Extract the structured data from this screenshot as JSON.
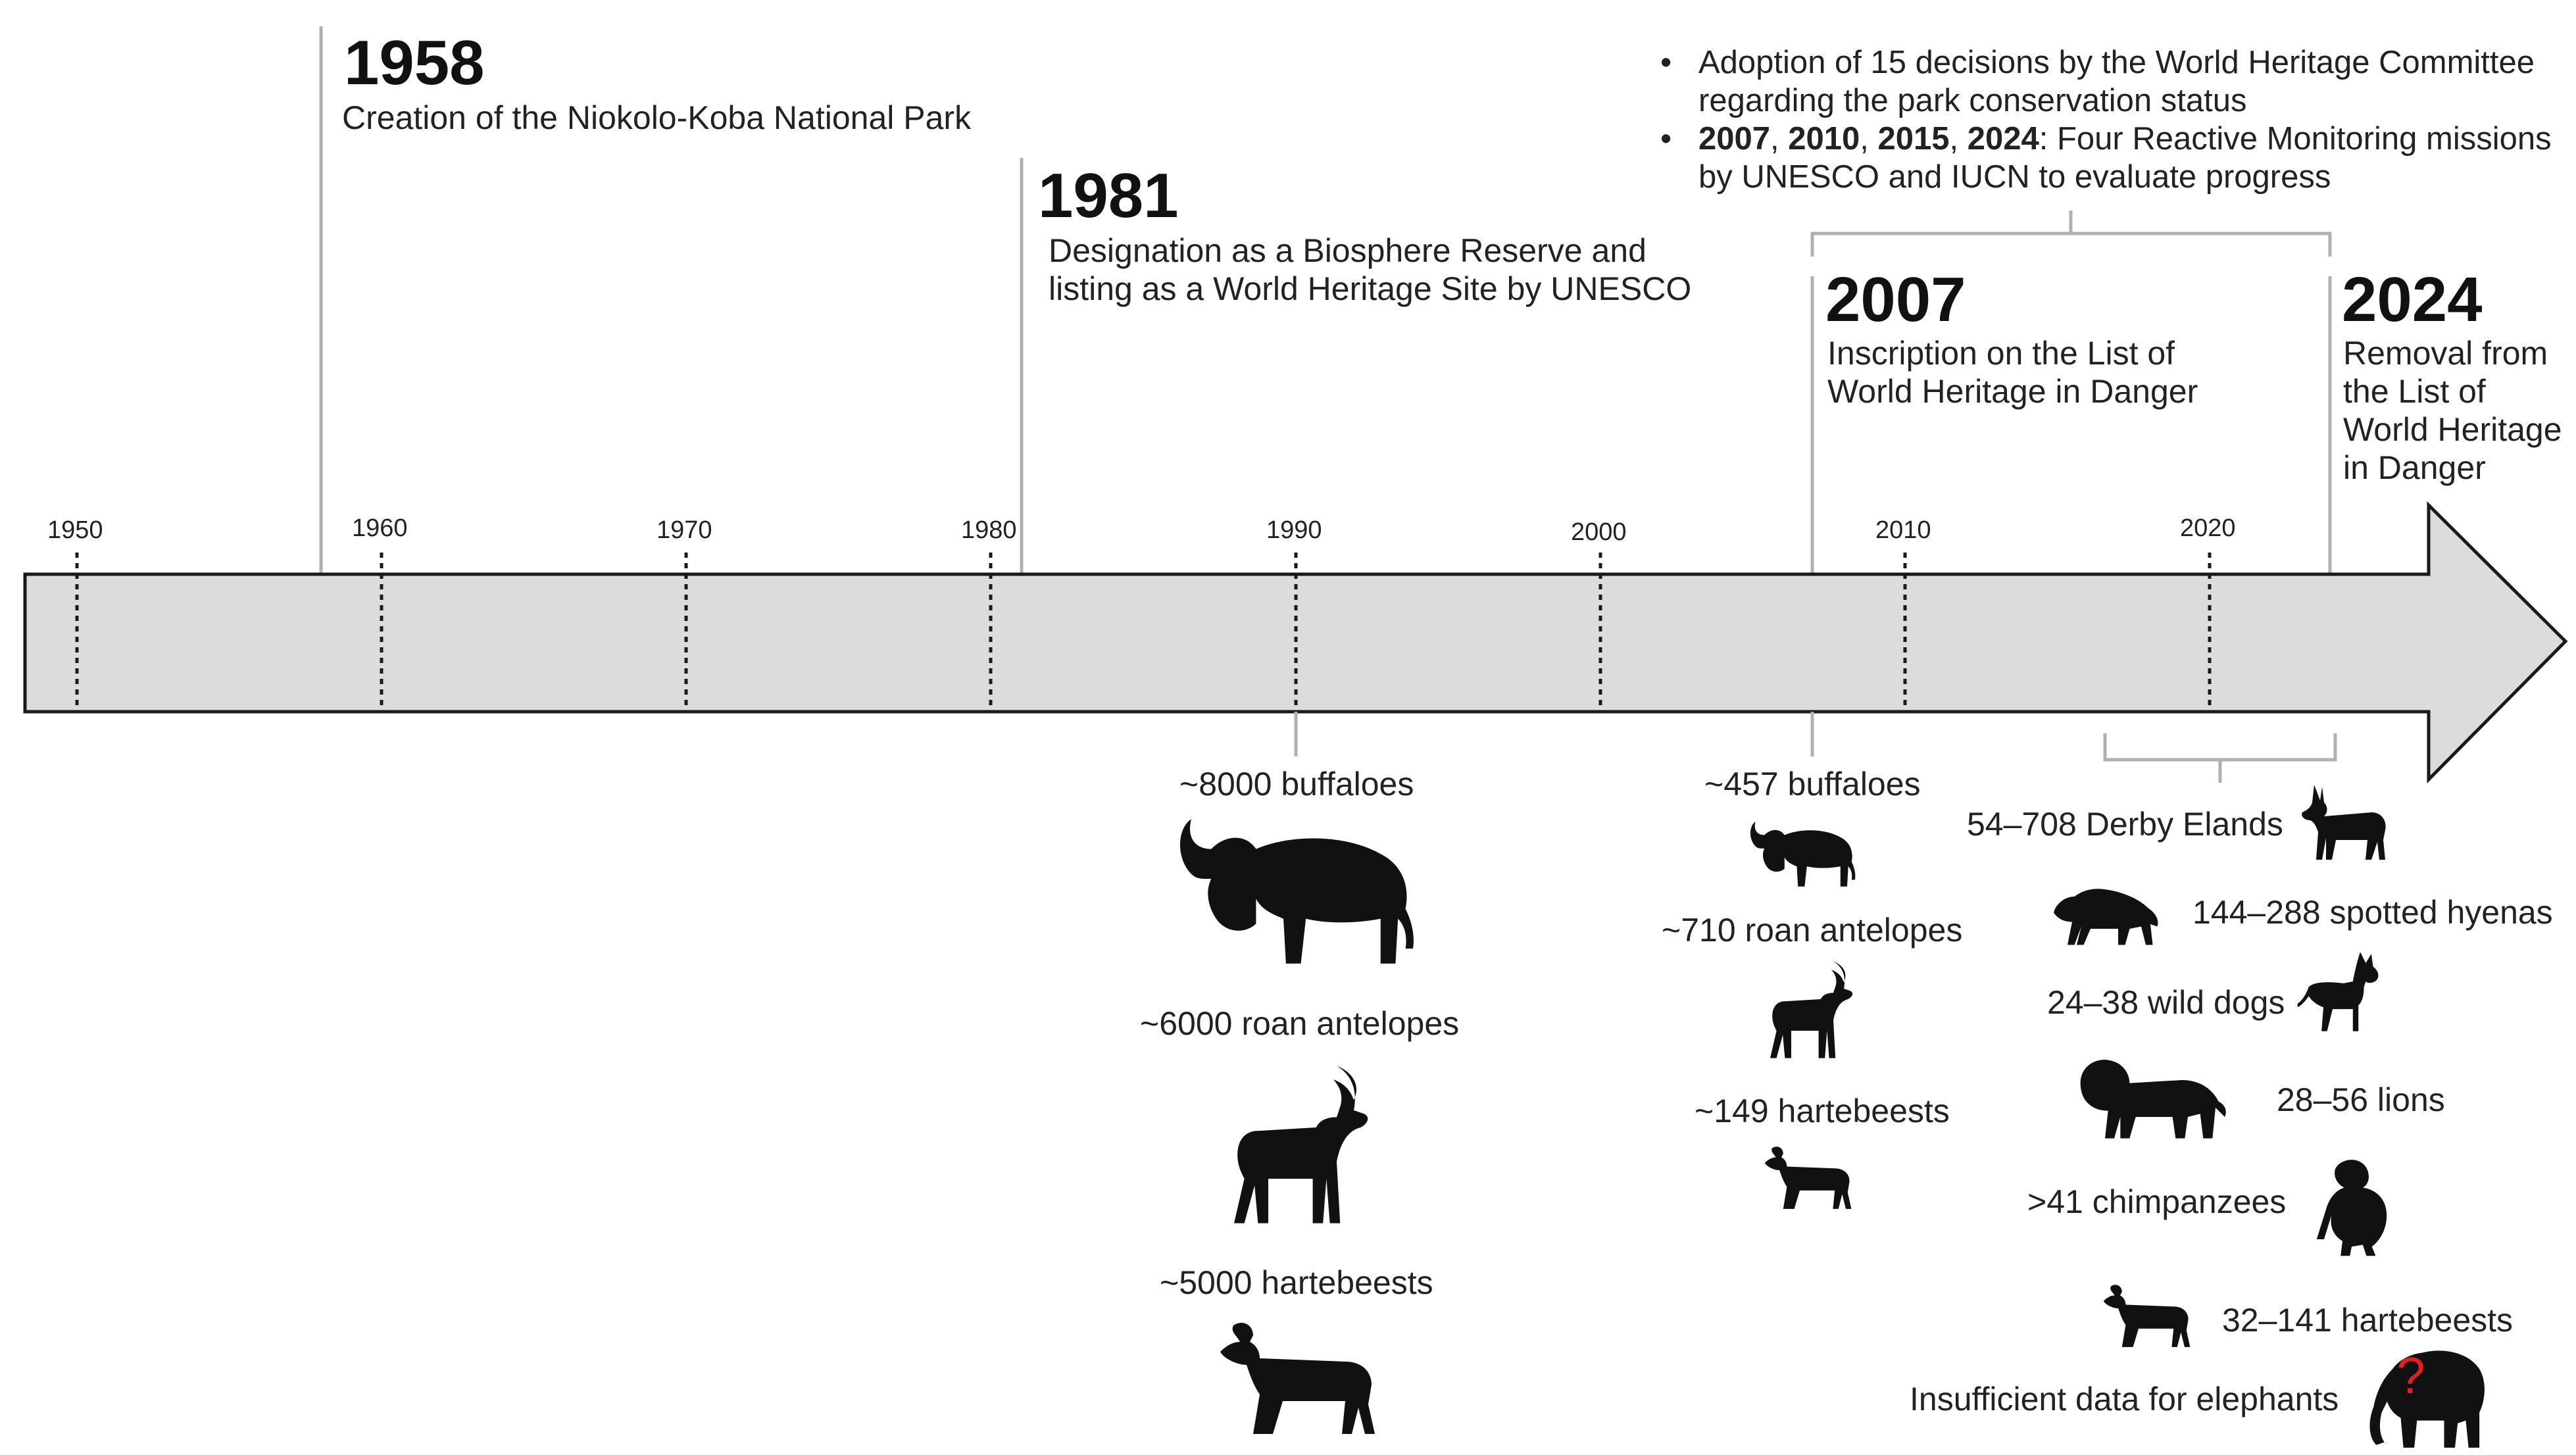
{
  "milestones": {
    "y1958": {
      "year": "1958",
      "text": "Creation of the Niokolo-Koba National Park"
    },
    "y1981": {
      "year": "1981",
      "lines": [
        "Designation as a Biosphere Reserve and",
        "listing as a World Heritage Site by UNESCO"
      ]
    },
    "y2007": {
      "year": "2007",
      "lines": [
        "Inscription on the List of",
        "World Heritage in Danger"
      ]
    },
    "y2024": {
      "year": "2024",
      "lines": [
        "Removal from",
        "the List of",
        "World Heritage",
        "in Danger"
      ]
    }
  },
  "bullets": {
    "b1": [
      "Adoption of 15 decisions by the World Heritage Committee",
      "regarding the park conservation status"
    ],
    "b2_years": [
      "2007",
      "2010",
      "2015",
      "2024"
    ],
    "b2_rest": ": Four Reactive Monitoring missions",
    "b2_line2": "by UNESCO and IUCN to evaluate progress"
  },
  "ticks": [
    "1950",
    "1960",
    "1970",
    "1980",
    "1990",
    "2000",
    "2010",
    "2020"
  ],
  "counts_1990": {
    "buffaloes": "~8000 buffaloes",
    "roan": "~6000 roan antelopes",
    "hartebeests": "~5000 hartebeests"
  },
  "counts_2007": {
    "buffaloes": "~457 buffaloes",
    "roan": "~710 roan antelopes",
    "hartebeests": "~149 hartebeests"
  },
  "counts_recent": {
    "elands": "54–708 Derby Elands",
    "hyenas": "144–288 spotted hyenas",
    "wild_dogs": "24–38 wild dogs",
    "lions": "28–56 lions",
    "chimpanzees": ">41 chimpanzees",
    "hartebeests": "32–141 hartebeests",
    "elephants": "Insufficient data for elephants",
    "elephant_mark": "?"
  },
  "colors": {
    "arrow_fill": "#dcdcdc",
    "arrow_stroke": "#1a1a1a",
    "leader": "#b0b0b0",
    "silhouette": "#111111",
    "question": "#e02020"
  }
}
